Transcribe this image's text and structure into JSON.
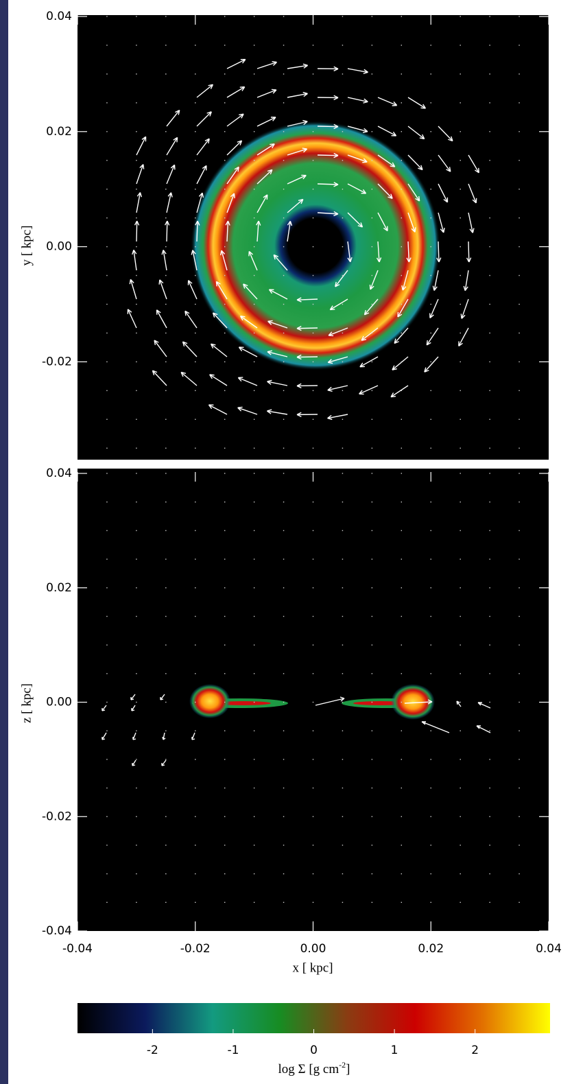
{
  "chart_data": [
    {
      "type": "heatmap",
      "ylabel": "y [ kpc]",
      "xlim": [
        -0.04,
        0.04
      ],
      "ylim": [
        -0.037,
        0.04
      ],
      "yticks": [
        0.04,
        0.02,
        {
          "value": 0,
          "label": "0.00"
        },
        -0.02
      ]
    },
    {
      "type": "heatmap",
      "xlabel": "x [ kpc]",
      "ylabel": "z [ kpc]",
      "xlim": [
        -0.04,
        0.04
      ],
      "ylim": [
        -0.04,
        0.04
      ],
      "xticks": [
        -0.04,
        -0.02,
        {
          "value": 0,
          "label": "0.00"
        },
        0.02,
        0.04
      ],
      "yticks": [
        0.04,
        0.02,
        {
          "value": 0,
          "label": "0.00"
        },
        -0.02,
        -0.04
      ]
    },
    {
      "type": "colorbar",
      "label": "log Σ [g cm",
      "label_exponent": "-2",
      "label_end": "]",
      "clim": [
        -2.93,
        2.93
      ],
      "ticks": [
        -2,
        -1,
        0,
        1,
        2
      ],
      "colors": [
        "#000000",
        "#0b1a5c",
        "#139a80",
        "#178c22",
        "#8a3c12",
        "#cc0000",
        "#e27000",
        "#ffff00"
      ]
    }
  ]
}
